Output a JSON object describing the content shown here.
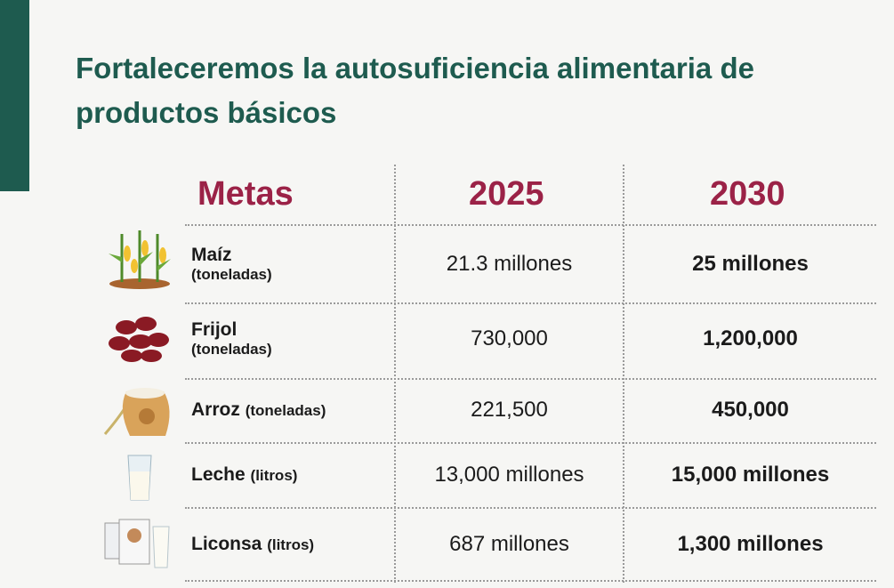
{
  "header": {
    "title": "Fortaleceremos la autosuficiencia alimentaria de productos básicos"
  },
  "table": {
    "columns": [
      "Metas",
      "2025",
      "2030"
    ],
    "rows": [
      {
        "name": "Maíz",
        "unit": "(toneladas)",
        "goal_2025": "21.3 millones",
        "goal_2030": "25 millones"
      },
      {
        "name": "Frijol",
        "unit": "(toneladas)",
        "goal_2025": "730,000",
        "goal_2030": "1,200,000"
      },
      {
        "name": "Arroz",
        "unit": "(toneladas)",
        "goal_2025": "221,500",
        "goal_2030": "450,000"
      },
      {
        "name": "Leche",
        "unit": "(litros)",
        "goal_2025": "13,000 millones",
        "goal_2030": "15,000 millones"
      },
      {
        "name": "Liconsa",
        "unit": "(litros)",
        "goal_2025": "687 millones",
        "goal_2030": "1,300 millones"
      }
    ]
  }
}
